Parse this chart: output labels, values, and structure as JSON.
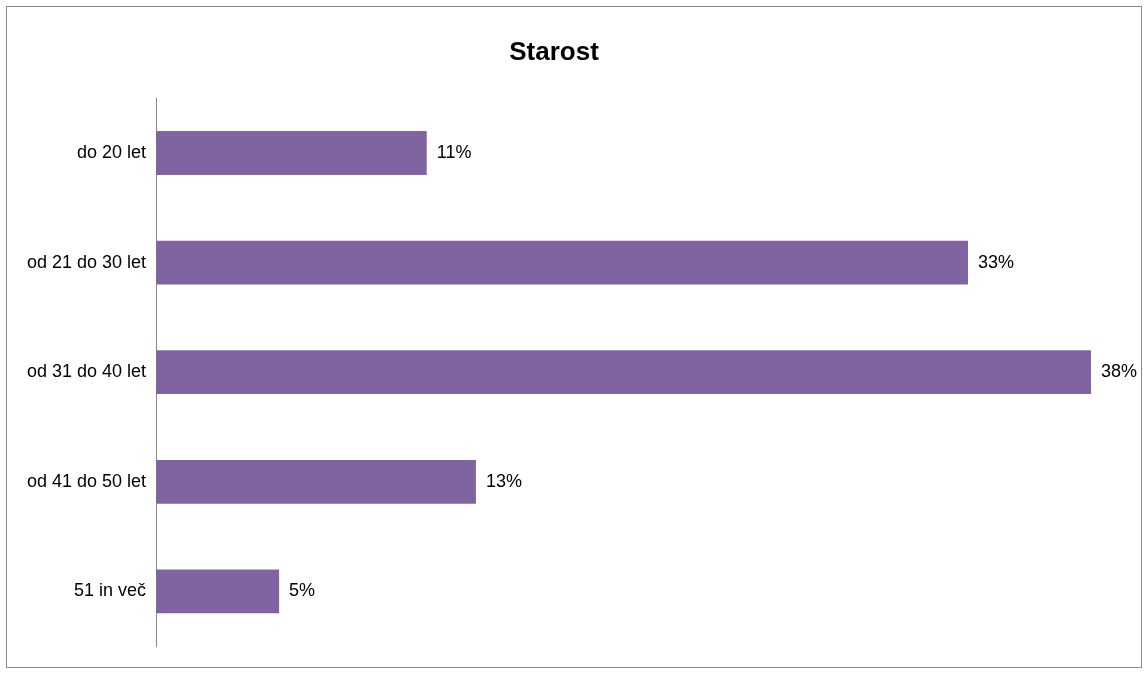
{
  "chart_data": {
    "type": "bar",
    "orientation": "horizontal",
    "title": "Starost",
    "categories": [
      "do 20 let",
      "od 21 do 30 let",
      "od 31 do 40 let",
      "od 41 do 50 let",
      "51 in več"
    ],
    "values": [
      11,
      33,
      38,
      13,
      5
    ],
    "value_labels": [
      "11%",
      "33%",
      "38%",
      "13%",
      "5%"
    ],
    "color": "#8064a2",
    "legend": false
  }
}
